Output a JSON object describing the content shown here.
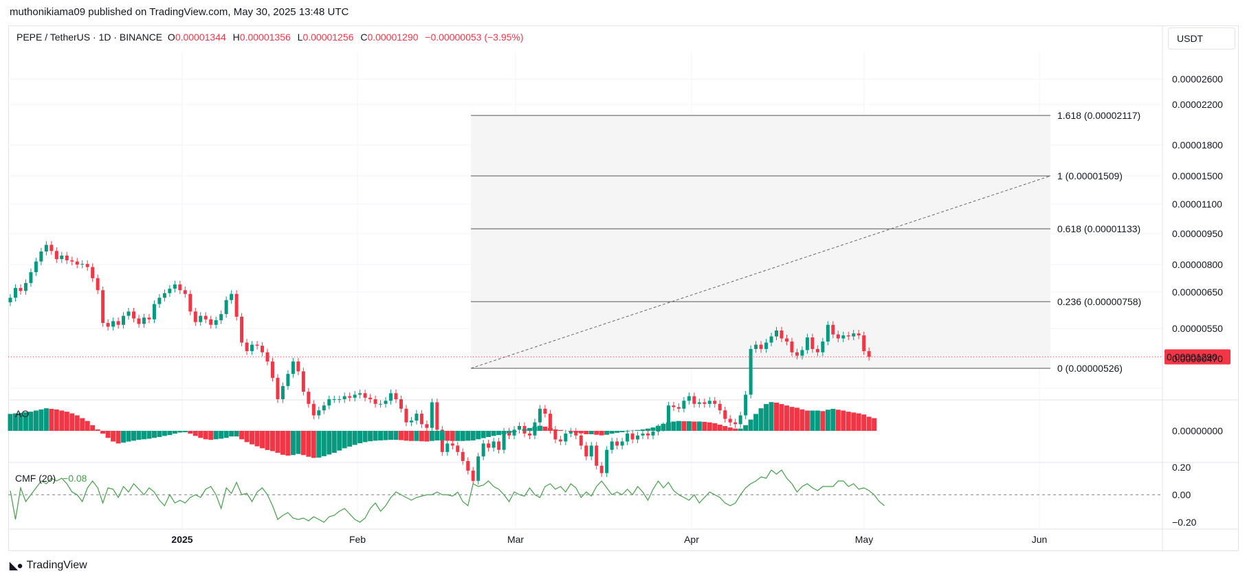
{
  "header": {
    "publish_line": "muthonikiama09 published on TradingView.com, May 30, 2025 13:48 UTC",
    "symbol": "PEPE / TetherUS · 1D · BINANCE",
    "o_label": "O",
    "o_value": "0.00001344",
    "h_label": "H",
    "h_value": "0.00001356",
    "l_label": "L",
    "l_value": "0.00001256",
    "c_label": "C",
    "c_value": "0.00001290",
    "change": "−0.00000053 (−3.95%)",
    "currency": "USDT"
  },
  "footer": {
    "logo_text": "TradingView"
  },
  "colors": {
    "up": "#089981",
    "down": "#f23645",
    "cmf": "#43a047",
    "grid": "#f0f3fa"
  },
  "chart_data": {
    "type": "candlestick",
    "price_axis": {
      "labels": [
        "0.00002600",
        "0.00002200",
        "0.00001800",
        "0.00001500",
        "0.00001100",
        "0.00000950",
        "0.00000800",
        "0.00000650",
        "0.00000550",
        "0.00000470"
      ],
      "last_price": "0.00001290"
    },
    "time_axis": {
      "labels": [
        {
          "text": "2025",
          "bold": true
        },
        {
          "text": "Feb",
          "bold": false
        },
        {
          "text": "Mar",
          "bold": false
        },
        {
          "text": "Apr",
          "bold": false
        },
        {
          "text": "May",
          "bold": false
        },
        {
          "text": "Jun",
          "bold": false
        }
      ]
    },
    "fibonacci": [
      {
        "label": "1.618 (0.00002117)"
      },
      {
        "label": "1 (0.00001509)"
      },
      {
        "label": "0.618 (0.00001133)"
      },
      {
        "label": "0.236 (0.00000758)"
      },
      {
        "label": "0 (0.00000526)"
      }
    ],
    "close": [
      1.92,
      2.05,
      2.01,
      2.12,
      2.28,
      2.45,
      2.62,
      2.74,
      2.63,
      2.49,
      2.55,
      2.47,
      2.45,
      2.4,
      2.41,
      2.36,
      2.19,
      2.02,
      1.62,
      1.58,
      1.64,
      1.6,
      1.7,
      1.75,
      1.67,
      1.61,
      1.68,
      1.66,
      1.84,
      1.92,
      1.98,
      2.04,
      2.1,
      2.02,
      1.97,
      1.75,
      1.63,
      1.7,
      1.66,
      1.6,
      1.65,
      1.72,
      1.89,
      1.97,
      1.69,
      1.42,
      1.34,
      1.4,
      1.39,
      1.33,
      1.25,
      1.12,
      0.97,
      1.06,
      1.15,
      1.25,
      1.17,
      1.02,
      0.94,
      0.87,
      0.9,
      0.93,
      0.97,
      0.97,
      0.97,
      0.99,
      0.98,
      1.0,
      1.01,
      0.98,
      0.97,
      0.94,
      0.94,
      0.96,
      1.01,
      0.97,
      0.91,
      0.83,
      0.84,
      0.88,
      0.82,
      0.8,
      0.95,
      0.79,
      0.68,
      0.72,
      0.71,
      0.68,
      0.64,
      0.6,
      0.56,
      0.66,
      0.72,
      0.7,
      0.73,
      0.69,
      0.78,
      0.76,
      0.79,
      0.81,
      0.77,
      0.76,
      0.83,
      0.91,
      0.88,
      0.79,
      0.74,
      0.73,
      0.77,
      0.78,
      0.76,
      0.71,
      0.66,
      0.71,
      0.62,
      0.59,
      0.69,
      0.73,
      0.71,
      0.73,
      0.77,
      0.74,
      0.76,
      0.77,
      0.76,
      0.78,
      0.8,
      0.81,
      0.93,
      0.92,
      0.91,
      0.96,
      0.99,
      0.94,
      0.95,
      0.94,
      0.96,
      0.94,
      0.9,
      0.85,
      0.83,
      0.82,
      0.87,
      1.0,
      1.36,
      1.4,
      1.36,
      1.42,
      1.48,
      1.54,
      1.46,
      1.43,
      1.33,
      1.3,
      1.35,
      1.47,
      1.36,
      1.33,
      1.43,
      1.6,
      1.5,
      1.46,
      1.49,
      1.48,
      1.51,
      1.49,
      1.34,
      1.29
    ],
    "ao": [
      0.6,
      0.62,
      0.64,
      0.66,
      0.68,
      0.72,
      0.76,
      0.8,
      0.78,
      0.76,
      0.72,
      0.68,
      0.62,
      0.55,
      0.45,
      0.35,
      0.2,
      0.05,
      -0.1,
      -0.25,
      -0.38,
      -0.45,
      -0.42,
      -0.38,
      -0.35,
      -0.32,
      -0.3,
      -0.28,
      -0.25,
      -0.22,
      -0.18,
      -0.15,
      -0.1,
      -0.06,
      -0.05,
      -0.1,
      -0.18,
      -0.25,
      -0.3,
      -0.32,
      -0.3,
      -0.28,
      -0.25,
      -0.2,
      -0.2,
      -0.3,
      -0.4,
      -0.48,
      -0.55,
      -0.62,
      -0.68,
      -0.72,
      -0.78,
      -0.85,
      -0.88,
      -0.86,
      -0.82,
      -0.86,
      -0.92,
      -0.96,
      -0.95,
      -0.9,
      -0.84,
      -0.78,
      -0.7,
      -0.62,
      -0.56,
      -0.5,
      -0.44,
      -0.4,
      -0.37,
      -0.35,
      -0.34,
      -0.33,
      -0.32,
      -0.32,
      -0.33,
      -0.35,
      -0.36,
      -0.36,
      -0.37,
      -0.38,
      -0.36,
      -0.34,
      -0.34,
      -0.35,
      -0.36,
      -0.36,
      -0.36,
      -0.35,
      -0.34,
      -0.3,
      -0.26,
      -0.22,
      -0.18,
      -0.15,
      -0.12,
      -0.08,
      -0.05,
      0.0,
      0.06,
      0.1,
      0.15,
      0.18,
      0.15,
      0.1,
      0.05,
      0.03,
      0.0,
      -0.03,
      -0.06,
      -0.09,
      -0.12,
      -0.12,
      -0.14,
      -0.16,
      -0.14,
      -0.1,
      -0.07,
      -0.05,
      -0.02,
      0.01,
      0.03,
      0.05,
      0.08,
      0.12,
      0.18,
      0.25,
      0.3,
      0.33,
      0.35,
      0.34,
      0.34,
      0.33,
      0.33,
      0.32,
      0.3,
      0.27,
      0.22,
      0.17,
      0.12,
      0.08,
      0.08,
      0.2,
      0.4,
      0.6,
      0.8,
      0.95,
      1.02,
      1.0,
      0.95,
      0.9,
      0.85,
      0.82,
      0.76,
      0.72,
      0.72,
      0.72,
      0.7,
      0.75,
      0.78,
      0.75,
      0.72,
      0.68,
      0.65,
      0.62,
      0.58,
      0.5,
      0.45
    ],
    "cmf": [
      0.03,
      -0.18,
      0.05,
      -0.05,
      0.0,
      0.05,
      0.1,
      0.08,
      0.12,
      0.1,
      0.12,
      0.08,
      0.02,
      0.0,
      -0.05,
      0.05,
      0.1,
      0.05,
      -0.06,
      0.05,
      0.04,
      -0.02,
      0.06,
      0.02,
      0.08,
      0.04,
      0.0,
      0.05,
      0.02,
      -0.04,
      -0.08,
      0.0,
      -0.06,
      -0.04,
      -0.06,
      -0.02,
      0.0,
      -0.02,
      0.04,
      0.06,
      0.0,
      -0.1,
      0.05,
      0.01,
      0.09,
      0.0,
      0.01,
      -0.05,
      0.02,
      0.05,
      0.0,
      -0.08,
      -0.18,
      -0.15,
      -0.13,
      -0.17,
      -0.18,
      -0.17,
      -0.19,
      -0.16,
      -0.18,
      -0.2,
      -0.16,
      -0.15,
      -0.12,
      -0.1,
      -0.14,
      -0.18,
      -0.2,
      -0.17,
      -0.1,
      -0.06,
      -0.12,
      -0.08,
      -0.02,
      0.02,
      0.0,
      -0.02,
      -0.04,
      -0.02,
      -0.01,
      0.0,
      0.0,
      0.02,
      0.0,
      0.0,
      -0.01,
      0.02,
      -0.05,
      -0.08,
      0.08,
      0.06,
      0.07,
      0.1,
      0.06,
      0.04,
      0.0,
      -0.05,
      0.02,
      0.0,
      -0.01,
      0.05,
      0.0,
      -0.02,
      0.06,
      0.08,
      0.04,
      0.06,
      0.02,
      0.08,
      0.05,
      -0.02,
      0.02,
      -0.01,
      0.06,
      0.1,
      0.05,
      0.0,
      0.02,
      0.0,
      0.04,
      0.0,
      0.06,
      0.02,
      -0.04,
      0.04,
      0.1,
      0.05,
      0.09,
      0.03,
      0.0,
      -0.02,
      -0.04,
      0.0,
      -0.06,
      -0.02,
      0.02,
      0.0,
      -0.02,
      -0.06,
      -0.08,
      -0.06,
      0.0,
      0.05,
      0.08,
      0.1,
      0.13,
      0.12,
      0.18,
      0.15,
      0.18,
      0.12,
      0.08,
      0.02,
      0.06,
      0.08,
      0.05,
      0.03,
      0.06,
      0.06,
      0.06,
      0.1,
      0.1,
      0.06,
      0.08,
      0.04,
      0.05,
      0.03,
      0.0,
      -0.05,
      -0.08
    ],
    "ao_label": "AO",
    "cmf_label": "CMF (20)",
    "cmf_value": "−0.08",
    "cmf_axis_labels": [
      "0.20",
      "0.00",
      "−0.20"
    ],
    "ao_axis_label": "0.00000000"
  }
}
